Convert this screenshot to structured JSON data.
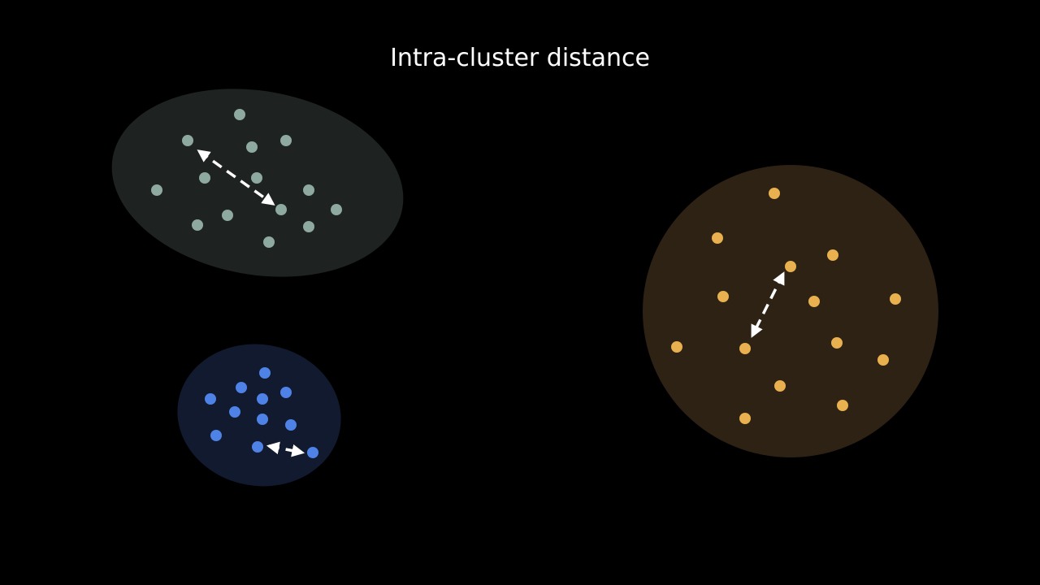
{
  "title": "Intra-cluster distance",
  "clusters": [
    {
      "name": "gray",
      "fill": "#1e2220",
      "point_color": "#8eaaa0"
    },
    {
      "name": "blue",
      "fill": "#111a2e",
      "point_color": "#4f82e6"
    },
    {
      "name": "gold",
      "fill": "#2e2214",
      "point_color": "#e8b04e"
    }
  ],
  "arrow_color": "#ffffff",
  "background": "#000000"
}
